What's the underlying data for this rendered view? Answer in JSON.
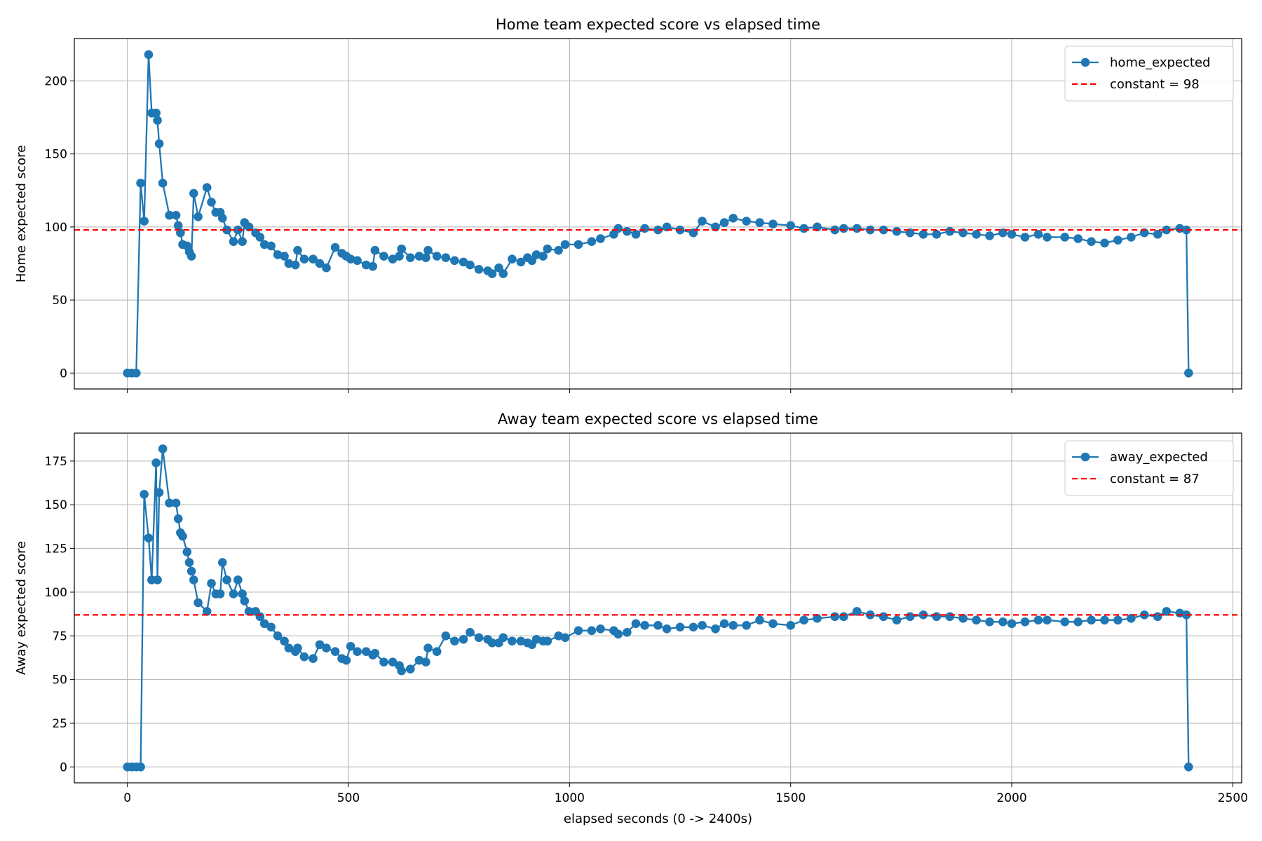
{
  "chart_data": [
    {
      "type": "line",
      "title": "Home team expected score vs elapsed time",
      "ylabel": "Home expected score",
      "x": [
        0,
        10,
        20,
        30,
        38,
        48,
        55,
        65,
        68,
        72,
        80,
        95,
        110,
        115,
        120,
        125,
        135,
        140,
        145,
        150,
        160,
        180,
        190,
        200,
        210,
        215,
        225,
        240,
        250,
        260,
        265,
        275,
        290,
        300,
        310,
        325,
        340,
        355,
        365,
        380,
        385,
        400,
        420,
        435,
        450,
        470,
        485,
        495,
        505,
        520,
        540,
        555,
        560,
        580,
        600,
        615,
        620,
        640,
        660,
        675,
        680,
        700,
        720,
        740,
        760,
        775,
        795,
        815,
        825,
        840,
        850,
        870,
        890,
        905,
        915,
        925,
        940,
        950,
        975,
        990,
        1020,
        1050,
        1070,
        1100,
        1110,
        1130,
        1150,
        1170,
        1200,
        1220,
        1250,
        1280,
        1300,
        1330,
        1350,
        1370,
        1400,
        1430,
        1460,
        1500,
        1530,
        1560,
        1600,
        1620,
        1650,
        1680,
        1710,
        1740,
        1770,
        1800,
        1830,
        1860,
        1890,
        1920,
        1950,
        1980,
        2000,
        2030,
        2060,
        2080,
        2120,
        2150,
        2180,
        2210,
        2240,
        2270,
        2300,
        2330,
        2350,
        2380,
        2395,
        2400
      ],
      "series": [
        {
          "name": "home_expected",
          "color": "#1f77b4",
          "values": [
            0,
            0,
            0,
            130,
            104,
            218,
            178,
            178,
            173,
            157,
            130,
            108,
            108,
            101,
            96,
            88,
            87,
            83,
            80,
            123,
            107,
            127,
            117,
            110,
            110,
            106,
            98,
            90,
            98,
            90,
            103,
            100,
            96,
            93,
            88,
            87,
            81,
            80,
            75,
            74,
            84,
            78,
            78,
            75,
            72,
            86,
            82,
            80,
            78,
            77,
            74,
            73,
            84,
            80,
            78,
            80,
            85,
            79,
            80,
            79,
            84,
            80,
            79,
            77,
            76,
            74,
            71,
            70,
            68,
            72,
            68,
            78,
            76,
            79,
            77,
            81,
            80,
            85,
            84,
            88,
            88,
            90,
            92,
            95,
            99,
            97,
            95,
            99,
            98,
            100,
            98,
            96,
            104,
            100,
            103,
            106,
            104,
            103,
            102,
            101,
            99,
            100,
            98,
            99,
            99,
            98,
            98,
            97,
            96,
            95,
            95,
            97,
            96,
            95,
            94,
            96,
            95,
            93,
            95,
            93,
            93,
            92,
            90,
            89,
            91,
            93,
            96,
            95,
            98,
            99,
            98,
            0
          ]
        }
      ],
      "hline": {
        "name": "constant = 98",
        "color": "#ff0000",
        "value": 98
      },
      "xlim": [
        -120,
        2520
      ],
      "xticks": [
        0,
        500,
        1000,
        1500,
        2000,
        2500
      ],
      "show_x_tick_labels": false,
      "ylim": [
        -10.9,
        229
      ],
      "yticks": [
        0,
        50,
        100,
        150,
        200
      ],
      "grid": true,
      "legend": "upper-right"
    },
    {
      "type": "line",
      "title": "Away team expected score vs elapsed time",
      "ylabel": "Away expected score",
      "xlabel": "elapsed seconds (0 -> 2400s)",
      "x": [
        0,
        10,
        20,
        30,
        38,
        48,
        55,
        65,
        68,
        72,
        80,
        95,
        110,
        115,
        120,
        125,
        135,
        140,
        145,
        150,
        160,
        180,
        190,
        200,
        210,
        215,
        225,
        240,
        250,
        260,
        265,
        275,
        290,
        300,
        310,
        325,
        340,
        355,
        365,
        380,
        385,
        400,
        420,
        435,
        450,
        470,
        485,
        495,
        505,
        520,
        540,
        555,
        560,
        580,
        600,
        615,
        620,
        640,
        660,
        675,
        680,
        700,
        720,
        740,
        760,
        775,
        795,
        815,
        825,
        840,
        850,
        870,
        890,
        905,
        915,
        925,
        940,
        950,
        975,
        990,
        1020,
        1050,
        1070,
        1100,
        1110,
        1130,
        1150,
        1170,
        1200,
        1220,
        1250,
        1280,
        1300,
        1330,
        1350,
        1370,
        1400,
        1430,
        1460,
        1500,
        1530,
        1560,
        1600,
        1620,
        1650,
        1680,
        1710,
        1740,
        1770,
        1800,
        1830,
        1860,
        1890,
        1920,
        1950,
        1980,
        2000,
        2030,
        2060,
        2080,
        2120,
        2150,
        2180,
        2210,
        2240,
        2270,
        2300,
        2330,
        2350,
        2380,
        2395,
        2400
      ],
      "series": [
        {
          "name": "away_expected",
          "color": "#1f77b4",
          "values": [
            0,
            0,
            0,
            0,
            156,
            131,
            107,
            174,
            107,
            157,
            182,
            151,
            151,
            142,
            134,
            132,
            123,
            117,
            112,
            107,
            94,
            89,
            105,
            99,
            99,
            117,
            107,
            99,
            107,
            99,
            95,
            89,
            89,
            86,
            82,
            80,
            75,
            72,
            68,
            66,
            68,
            63,
            62,
            70,
            68,
            66,
            62,
            61,
            69,
            66,
            66,
            64,
            65,
            60,
            60,
            58,
            55,
            56,
            61,
            60,
            68,
            66,
            75,
            72,
            73,
            77,
            74,
            73,
            71,
            71,
            74,
            72,
            72,
            71,
            70,
            73,
            72,
            72,
            75,
            74,
            78,
            78,
            79,
            78,
            76,
            77,
            82,
            81,
            81,
            79,
            80,
            80,
            81,
            79,
            82,
            81,
            81,
            84,
            82,
            81,
            84,
            85,
            86,
            86,
            89,
            87,
            86,
            84,
            86,
            87,
            86,
            86,
            85,
            84,
            83,
            83,
            82,
            83,
            84,
            84,
            83,
            83,
            84,
            84,
            84,
            85,
            87,
            86,
            89,
            88,
            87,
            0
          ]
        }
      ],
      "hline": {
        "name": "constant = 87",
        "color": "#ff0000",
        "value": 87
      },
      "xlim": [
        -120,
        2520
      ],
      "xticks": [
        0,
        500,
        1000,
        1500,
        2000,
        2500
      ],
      "show_x_tick_labels": true,
      "ylim": [
        -9.1,
        191
      ],
      "yticks": [
        0,
        25,
        50,
        75,
        100,
        125,
        150,
        175
      ],
      "grid": true,
      "legend": "upper-right"
    }
  ]
}
